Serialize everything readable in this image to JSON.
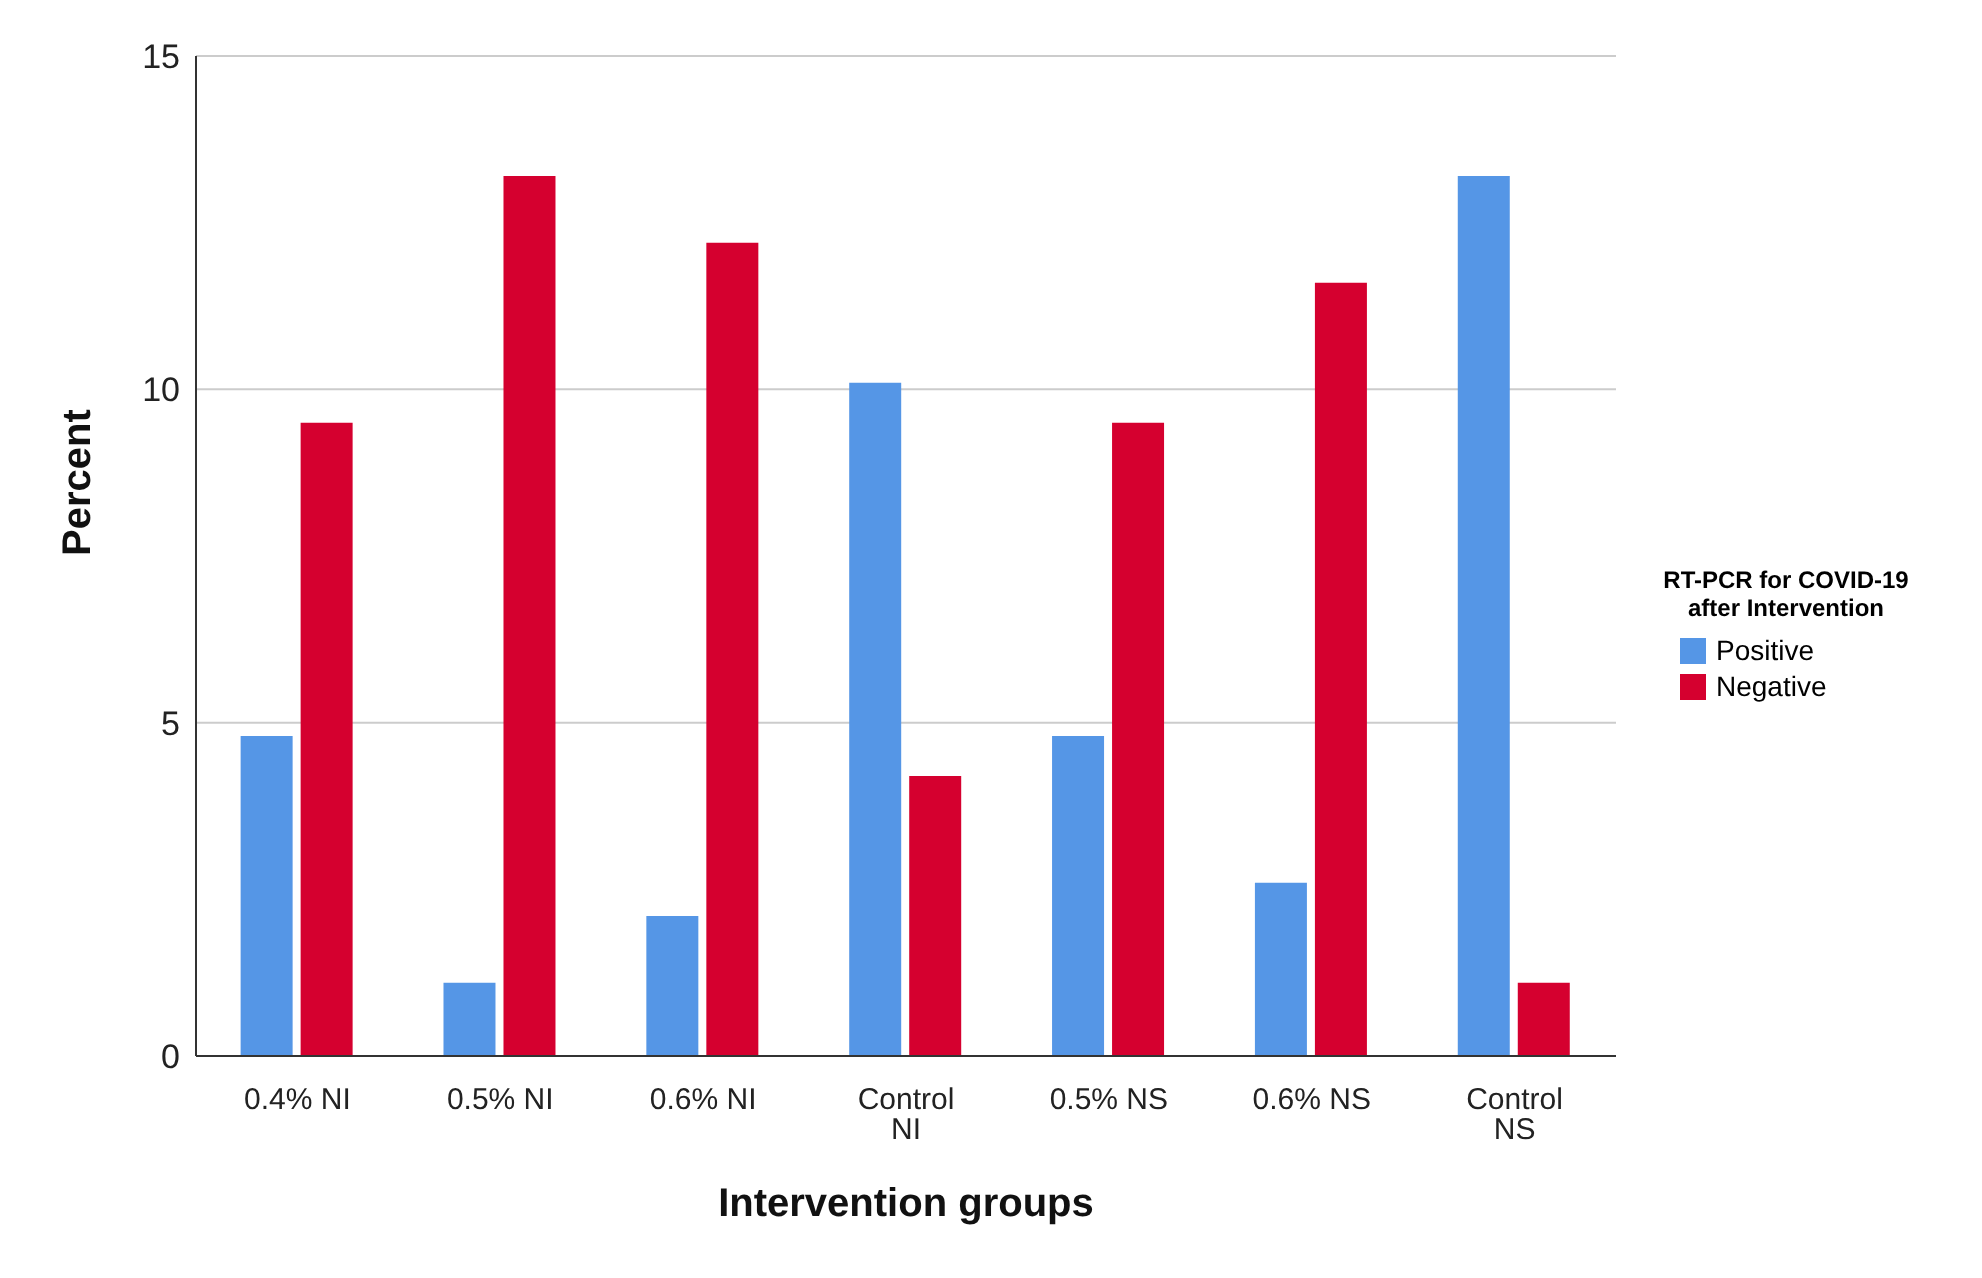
{
  "chart_data": {
    "type": "bar",
    "xlabel": "Intervention groups",
    "ylabel": "Percent",
    "legend_title": "RT-PCR for COVID-19 after Intervention",
    "categories": [
      "0.4% NI",
      "0.5% NI",
      "0.6% NI",
      "Control NI",
      "0.5% NS",
      "0.6% NS",
      "Control NS"
    ],
    "series": [
      {
        "name": "Positive",
        "color": "#5596e6",
        "values": [
          4.8,
          1.1,
          2.1,
          10.1,
          4.8,
          2.6,
          13.2
        ]
      },
      {
        "name": "Negative",
        "color": "#d5002f",
        "values": [
          9.5,
          13.2,
          12.2,
          4.2,
          9.5,
          11.6,
          1.1
        ]
      }
    ],
    "ylim": [
      0,
      15
    ],
    "yticks": [
      0,
      5,
      10,
      15
    ],
    "grid": "y",
    "legend": "right"
  }
}
